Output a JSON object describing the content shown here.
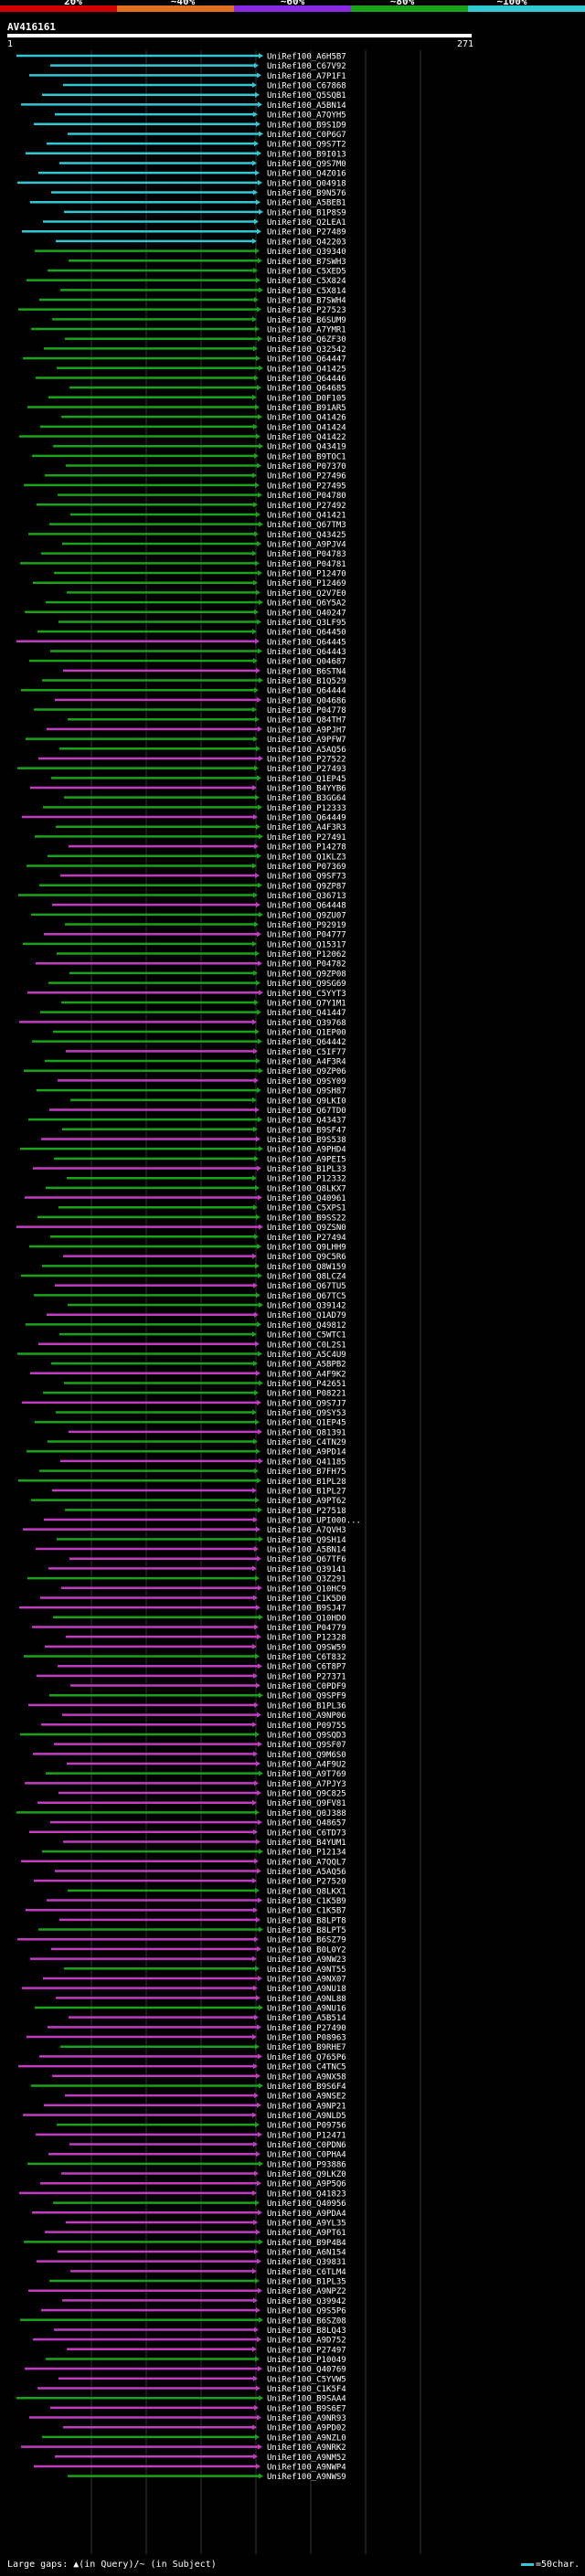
{
  "chart_data": {
    "type": "alignment-overview",
    "query_id": "AV416161",
    "query_start": "1",
    "query_end": "271",
    "identity_scale": {
      "labels": [
        "20%",
        "~40%",
        "~60%",
        "~80%",
        "~100%"
      ],
      "colors": [
        "#d40000",
        "#e07020",
        "#8a2be2",
        "#1aa31a",
        "#33c7d4"
      ]
    },
    "legend": {
      "gaps_text": "Large gaps: ▲(in Query)/~ (in Subject)",
      "chars_text": "=50char."
    },
    "hits": [
      "UniRef100_A6H5B7",
      "UniRef100_C67V92",
      "UniRef100_A7P1F1",
      "UniRef100_C67868",
      "UniRef100_Q5SQB1",
      "UniRef100_A5BN14",
      "UniRef100_A7QYH5",
      "UniRef100_B9S1D9",
      "UniRef100_C0P6G7",
      "UniRef100_Q9S7T2",
      "UniRef100_B9I013",
      "UniRef100_Q9S7M0",
      "UniRef100_Q4Z016",
      "UniRef100_Q04918",
      "UniRef100_B9N576",
      "UniRef100_A5BEB1",
      "UniRef100_B1P8S9",
      "UniRef100_Q2LEA1",
      "UniRef100_P27489",
      "UniRef100_Q42203",
      "UniRef100_Q39340",
      "UniRef100_B7SWH3",
      "UniRef100_C5XED5",
      "UniRef100_C5X824",
      "UniRef100_C5X814",
      "UniRef100_B7SWH4",
      "UniRef100_P27523",
      "UniRef100_B6SUM9",
      "UniRef100_A7YMR1",
      "UniRef100_Q6ZF30",
      "UniRef100_Q32542",
      "UniRef100_Q64447",
      "UniRef100_Q41425",
      "UniRef100_Q64446",
      "UniRef100_Q64685",
      "UniRef100_D0F105",
      "UniRef100_B91AR5",
      "UniRef100_Q41426",
      "UniRef100_Q41424",
      "UniRef100_Q41422",
      "UniRef100_Q43419",
      "UniRef100_B9TOC1",
      "UniRef100_P07370",
      "UniRef100_P27496",
      "UniRef100_P27495",
      "UniRef100_P04780",
      "UniRef100_P27492",
      "UniRef100_Q41421",
      "UniRef100_Q67TM3",
      "UniRef100_Q43425",
      "UniRef100_A9PJV4",
      "UniRef100_P04783",
      "UniRef100_P04781",
      "UniRef100_P12470",
      "UniRef100_P12469",
      "UniRef100_Q2V7E0",
      "UniRef100_Q6Y5A2",
      "UniRef100_Q40247",
      "UniRef100_Q3LF95",
      "UniRef100_Q64450",
      "UniRef100_Q64445",
      "UniRef100_Q64443",
      "UniRef100_Q04687",
      "UniRef100_B6STN4",
      "UniRef100_B1Q529",
      "UniRef100_Q64444",
      "UniRef100_Q04686",
      "UniRef100_P04778",
      "UniRef100_Q84TH7",
      "UniRef100_A9PJH7",
      "UniRef100_A9PFW7",
      "UniRef100_A5AQ56",
      "UniRef100_P27522",
      "UniRef100_P27493",
      "UniRef100_Q1EP45",
      "UniRef100_B4YYB6",
      "UniRef100_B3GG64",
      "UniRef100_P12333",
      "UniRef100_Q64449",
      "UniRef100_A4F3R3",
      "UniRef100_P27491",
      "UniRef100_P14278",
      "UniRef100_Q1KLZ3",
      "UniRef100_P07369",
      "UniRef100_Q9SF73",
      "UniRef100_Q9ZP87",
      "UniRef100_Q36713",
      "UniRef100_Q64448",
      "UniRef100_Q9ZU07",
      "UniRef100_P92919",
      "UniRef100_P04777",
      "UniRef100_Q15317",
      "UniRef100_P12062",
      "UniRef100_P04782",
      "UniRef100_Q9ZP08",
      "UniRef100_Q9SG69",
      "UniRef100_C5YYT3",
      "UniRef100_Q7Y1M1",
      "UniRef100_Q41447",
      "UniRef100_Q39768",
      "UniRef100_Q1EP00",
      "UniRef100_Q64442",
      "UniRef100_C5IF77",
      "UniRef100_A4F3R4",
      "UniRef100_Q9ZP06",
      "UniRef100_Q9SY09",
      "UniRef100_Q9SH87",
      "UniRef100_Q9LKI0",
      "UniRef100_Q67TD0",
      "UniRef100_Q43437",
      "UniRef100_B9SF47",
      "UniRef100_B9S538",
      "UniRef100_A9PHD4",
      "UniRef100_A9PEI5",
      "UniRef100_B1PL33",
      "UniRef100_P12332",
      "UniRef100_Q8LKX7",
      "UniRef100_Q40961",
      "UniRef100_C5XPS1",
      "UniRef100_B9SS22",
      "UniRef100_Q9ZSN0",
      "UniRef100_P27494",
      "UniRef100_Q9LHH9",
      "UniRef100_Q9C5R6",
      "UniRef100_Q8W159",
      "UniRef100_Q8LCZ4",
      "UniRef100_Q67TU5",
      "UniRef100_Q67TC5",
      "UniRef100_Q39142",
      "UniRef100_Q1AD79",
      "UniRef100_Q49812",
      "UniRef100_C5WTC1",
      "UniRef100_C0L2S1",
      "UniRef100_A5C4U9",
      "UniRef100_A5BPB2",
      "UniRef100_A4F9K2",
      "UniRef100_P42651",
      "UniRef100_P08221",
      "UniRef100_Q9S7J7",
      "UniRef100_Q9SY53",
      "UniRef100_Q1EP45",
      "UniRef100_Q81391",
      "UniRef100_C4TN29",
      "UniRef100_A9PD14",
      "UniRef100_Q41185",
      "UniRef100_B7FH75",
      "UniRef100_B1PL28",
      "UniRef100_B1PL27",
      "UniRef100_A9PT62",
      "UniRef100_P27518",
      "UniRef100_UPI000...",
      "UniRef100_A7QVH3",
      "UniRef100_Q9SH14",
      "UniRef100_A5BN14",
      "UniRef100_Q67TF6",
      "UniRef100_Q39141",
      "UniRef100_Q3Z291",
      "UniRef100_Q10HC9",
      "UniRef100_C1K5D0",
      "UniRef100_B9SJ47",
      "UniRef100_Q10HD0",
      "UniRef100_P04779",
      "UniRef100_P12328",
      "UniRef100_Q9SW59",
      "UniRef100_C6T832",
      "UniRef100_C6T8P7",
      "UniRef100_P27371",
      "UniRef100_C0PDF9",
      "UniRef100_Q9SPF9",
      "UniRef100_B1PL36",
      "UniRef100_A9NP06",
      "UniRef100_P09755",
      "UniRef100_Q9SQD3",
      "UniRef100_Q9SF07",
      "UniRef100_Q9M6S0",
      "UniRef100_A4F9U2",
      "UniRef100_A9T769",
      "UniRef100_A7PJY3",
      "UniRef100_Q9C825",
      "UniRef100_Q9FV81",
      "UniRef100_Q0J388",
      "UniRef100_Q48657",
      "UniRef100_C6TD73",
      "UniRef100_B4YUM1",
      "UniRef100_P12134",
      "UniRef100_A7QQL7",
      "UniRef100_A5AQ56",
      "UniRef100_P27520",
      "UniRef100_Q8LKX1",
      "UniRef100_C1K5B9",
      "UniRef100_C1K5B7",
      "UniRef100_B8LPT8",
      "UniRef100_B8LPT5",
      "UniRef100_B6SZ79",
      "UniRef100_B0L0Y2",
      "UniRef100_A9NW23",
      "UniRef100_A9NT55",
      "UniRef100_A9NX07",
      "UniRef100_A9NU18",
      "UniRef100_A9NL88",
      "UniRef100_A9NU16",
      "UniRef100_A5B514",
      "UniRef100_P27490",
      "UniRef100_P08963",
      "UniRef100_B9RHE7",
      "UniRef100_Q765P6",
      "UniRef100_C4TNC5",
      "UniRef100_A9NX58",
      "UniRef100_B9S6F4",
      "UniRef100_A9NSE2",
      "UniRef100_A9NP21",
      "UniRef100_A9NLD5",
      "UniRef100_P09756",
      "UniRef100_P12471",
      "UniRef100_C0PDN6",
      "UniRef100_C0PHA4",
      "UniRef100_P93886",
      "UniRef100_Q9LKZ0",
      "UniRef100_A9P5Q6",
      "UniRef100_Q41823",
      "UniRef100_Q40956",
      "UniRef100_A9PDA4",
      "UniRef100_A9YL35",
      "UniRef100_A9PT61",
      "UniRef100_B9P4B4",
      "UniRef100_A6N154",
      "UniRef100_Q39831",
      "UniRef100_C6TLM4",
      "UniRef100_B1PL35",
      "UniRef100_A9NPZ2",
      "UniRef100_Q39942",
      "UniRef100_Q9S5P6",
      "UniRef100_B6SZ08",
      "UniRef100_B8LQ43",
      "UniRef100_A9D752",
      "UniRef100_P27497",
      "UniRef100_P10049",
      "UniRef100_Q40769",
      "UniRef100_C5YVW5",
      "UniRef100_C1K5F4",
      "UniRef100_B9SAA4",
      "UniRef100_B9S6E7",
      "UniRef100_A9NR93",
      "UniRef100_A9PD02",
      "UniRef100_A9NZL0",
      "UniRef100_A9NRK2",
      "UniRef100_A9NM52",
      "UniRef100_A9NWP4",
      "UniRef100_A9NWS9"
    ]
  }
}
